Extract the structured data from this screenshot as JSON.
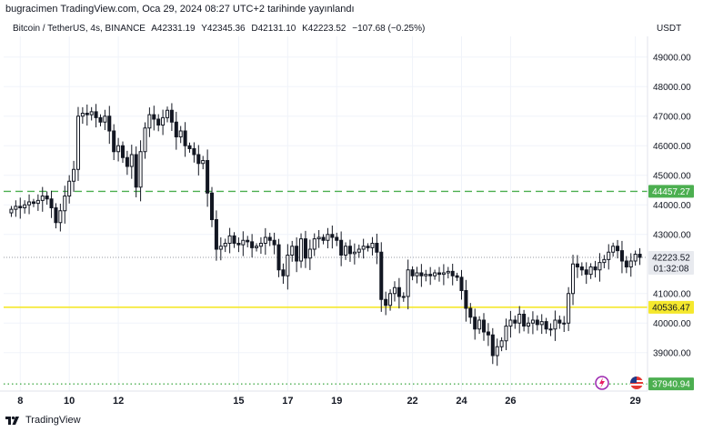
{
  "header": {
    "text": "bugracimen TradingView.com, Oca 29, 2024 08:27 UTC+2 tarihinde yayınlandı"
  },
  "legend": {
    "symbol": "Bitcoin / TetherUS, 4s, BINANCE",
    "open": "A42331.19",
    "high": "Y42345.36",
    "low": "D42131.10",
    "close": "K42223.52",
    "change": "−107.68 (−0.25%)"
  },
  "currency": "USDT",
  "footer": {
    "brand": "TradingView"
  },
  "colors": {
    "candle": "#131722",
    "dashed_level": "#4caf50",
    "yellow_level": "#f5e82d",
    "dotted_level": "#4caf50",
    "last_price_tag": "#d1d4dc"
  },
  "icons": [
    "lightning-icon",
    "us-flag-icon",
    "tradingview-logo-icon"
  ],
  "chart_data": {
    "type": "candlestick",
    "ylim": [
      37700,
      49700
    ],
    "y_ticks": [
      "49000.00",
      "48000.00",
      "47000.00",
      "46000.00",
      "45000.00",
      "44000.00",
      "43000.00",
      "41000.00",
      "40000.00",
      "39000.00"
    ],
    "x_ticks": [
      "8",
      "10",
      "12",
      "15",
      "17",
      "19",
      "22",
      "24",
      "26",
      "29"
    ],
    "price_levels": [
      {
        "label": "44457.27",
        "value": 44457.27,
        "style": "dashed",
        "color": "#4caf50"
      },
      {
        "label": "40536.47",
        "value": 40536.47,
        "style": "solid",
        "color": "#f5e82d"
      },
      {
        "label": "37940.94",
        "value": 37940.94,
        "style": "dotted",
        "color": "#4caf50"
      }
    ],
    "last_price": {
      "label": "42223.52",
      "countdown": "01:32:08",
      "value": 42223.52
    },
    "closes": [
      43850,
      43950,
      43900,
      44000,
      44100,
      44050,
      44150,
      44300,
      44200,
      43900,
      43400,
      43800,
      44300,
      44800,
      45200,
      47000,
      47100,
      47050,
      47150,
      46950,
      46800,
      47000,
      46500,
      45800,
      46000,
      45600,
      45300,
      45700,
      44600,
      45800,
      46600,
      47050,
      46900,
      46700,
      46950,
      47200,
      46800,
      46300,
      46500,
      46000,
      45900,
      45700,
      45400,
      45500,
      44400,
      43500,
      42500,
      42600,
      42700,
      42950,
      42700,
      42650,
      42800,
      42750,
      42550,
      42600,
      42700,
      42900,
      42800,
      42650,
      41800,
      41600,
      42300,
      42600,
      42100,
      42850,
      42200,
      42500,
      42850,
      42900,
      42800,
      43000,
      42900,
      42800,
      42300,
      42600,
      42350,
      42400,
      42500,
      42600,
      42550,
      42700,
      42400,
      40800,
      40600,
      41000,
      41200,
      40900,
      40900,
      41800,
      41600,
      41700,
      41600,
      41650,
      41600,
      41700,
      41650,
      41700,
      41750,
      41600,
      41550,
      41100,
      40500,
      40200,
      39800,
      40100,
      39700,
      39600,
      38900,
      39200,
      39400,
      39900,
      40100,
      40000,
      40300,
      39900,
      40000,
      40100,
      39950,
      40050,
      39800,
      39800,
      40100,
      40000,
      40000,
      41000,
      42000,
      41900,
      41800,
      41650,
      41900,
      41800,
      42050,
      42150,
      42400,
      42600,
      42450,
      42100,
      41900,
      42100,
      42330,
      42223
    ]
  }
}
